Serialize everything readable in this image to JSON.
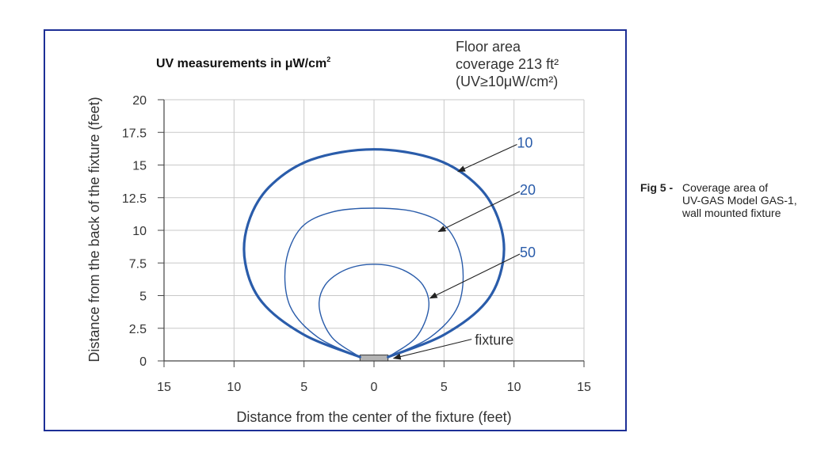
{
  "chart_data": {
    "type": "line",
    "title": "UV measurements in μW/cm",
    "title_sup": "2",
    "xlabel": "Distance from the center of the fixture (feet)",
    "ylabel": "Distance from the back of the fixture (feet)",
    "xlim": [
      -15,
      15
    ],
    "ylim": [
      0,
      20
    ],
    "x_ticks": [
      -15,
      -10,
      -5,
      0,
      5,
      10,
      15
    ],
    "x_tick_labels": [
      "15",
      "10",
      "5",
      "0",
      "5",
      "10",
      "15"
    ],
    "y_ticks": [
      0,
      2.5,
      5,
      7.5,
      10,
      12.5,
      15,
      17.5,
      20
    ],
    "y_tick_labels": [
      "0",
      "2.5",
      "5",
      "7.5",
      "10",
      "12.5",
      "15",
      "17.5",
      "20"
    ],
    "grid": true,
    "note_lines": [
      "Floor area",
      "coverage 213 ft²",
      "(UV≥10μW/cm²)"
    ],
    "colors": {
      "contour": "#2a5caa",
      "grid": "#c8c8c8",
      "frame": "#1d2f96",
      "fixture": "#b4b4b4"
    },
    "series": [
      {
        "name": "10",
        "stroke_width": 3.2,
        "points": [
          [
            -1,
            0.3
          ],
          [
            -5,
            2
          ],
          [
            -8,
            4.5
          ],
          [
            -9.2,
            7.5
          ],
          [
            -9,
            10.5
          ],
          [
            -7.5,
            13.3
          ],
          [
            -4.5,
            15.4
          ],
          [
            0,
            16.2
          ],
          [
            4.5,
            15.4
          ],
          [
            7.5,
            13.3
          ],
          [
            9,
            10.5
          ],
          [
            9.2,
            7.5
          ],
          [
            8,
            4.5
          ],
          [
            5,
            2
          ],
          [
            1,
            0.3
          ]
        ]
      },
      {
        "name": "20",
        "stroke_width": 1.4,
        "points": [
          [
            -1,
            0.3
          ],
          [
            -4,
            1.8
          ],
          [
            -6,
            4.2
          ],
          [
            -6.3,
            7.5
          ],
          [
            -5.2,
            10.2
          ],
          [
            -3,
            11.4
          ],
          [
            0,
            11.7
          ],
          [
            3,
            11.4
          ],
          [
            5.2,
            10.2
          ],
          [
            6.3,
            7.5
          ],
          [
            6,
            4.2
          ],
          [
            4,
            1.8
          ],
          [
            1,
            0.3
          ]
        ]
      },
      {
        "name": "50",
        "stroke_width": 1.4,
        "points": [
          [
            -1,
            0.3
          ],
          [
            -3,
            1.8
          ],
          [
            -3.9,
            4
          ],
          [
            -3.5,
            5.8
          ],
          [
            -2,
            7
          ],
          [
            0,
            7.4
          ],
          [
            2,
            7
          ],
          [
            3.5,
            5.8
          ],
          [
            3.9,
            4
          ],
          [
            3,
            1.8
          ],
          [
            1,
            0.3
          ]
        ]
      }
    ],
    "annotations": [
      {
        "text": "10",
        "x": 10.1,
        "y": 16.7,
        "arrow_to": [
          6,
          14.5
        ]
      },
      {
        "text": "20",
        "x": 10.3,
        "y": 13.1,
        "arrow_to": [
          4.6,
          9.9
        ]
      },
      {
        "text": "50",
        "x": 10.3,
        "y": 8.3,
        "arrow_to": [
          4,
          4.8
        ]
      },
      {
        "text": "fixture",
        "x": 7.2,
        "y": 1.6,
        "arrow_to": [
          1.4,
          0.2
        ]
      }
    ],
    "fixture": {
      "x": [
        -1,
        1
      ],
      "y": [
        0,
        0.45
      ]
    }
  },
  "caption": {
    "label": "Fig 5 -",
    "lines": [
      "Coverage area of",
      "UV-GAS Model GAS-1,",
      "wall mounted fixture"
    ]
  }
}
